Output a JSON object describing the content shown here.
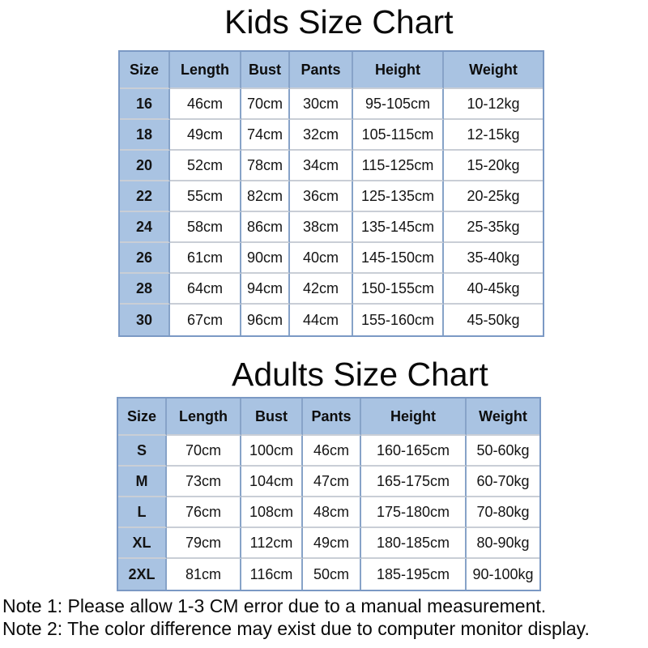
{
  "colors": {
    "table_header_fill": "#a9c3e2",
    "table_border_blue": "#7b99c4",
    "cell_divider_blue": "#87a3c8",
    "row_divider_gray": "#c9ced6",
    "text": "#000000",
    "background": "#ffffff"
  },
  "kids_chart": {
    "title": "Kids Size Chart",
    "columns": [
      "Size",
      "Length",
      "Bust",
      "Pants",
      "Height",
      "Weight"
    ],
    "rows": [
      [
        "16",
        "46cm",
        "70cm",
        "30cm",
        "95-105cm",
        "10-12kg"
      ],
      [
        "18",
        "49cm",
        "74cm",
        "32cm",
        "105-115cm",
        "12-15kg"
      ],
      [
        "20",
        "52cm",
        "78cm",
        "34cm",
        "115-125cm",
        "15-20kg"
      ],
      [
        "22",
        "55cm",
        "82cm",
        "36cm",
        "125-135cm",
        "20-25kg"
      ],
      [
        "24",
        "58cm",
        "86cm",
        "38cm",
        "135-145cm",
        "25-35kg"
      ],
      [
        "26",
        "61cm",
        "90cm",
        "40cm",
        "145-150cm",
        "35-40kg"
      ],
      [
        "28",
        "64cm",
        "94cm",
        "42cm",
        "150-155cm",
        "40-45kg"
      ],
      [
        "30",
        "67cm",
        "96cm",
        "44cm",
        "155-160cm",
        "45-50kg"
      ]
    ]
  },
  "adults_chart": {
    "title": "Adults Size Chart",
    "columns": [
      "Size",
      "Length",
      "Bust",
      "Pants",
      "Height",
      "Weight"
    ],
    "rows": [
      [
        "S",
        "70cm",
        "100cm",
        "46cm",
        "160-165cm",
        "50-60kg"
      ],
      [
        "M",
        "73cm",
        "104cm",
        "47cm",
        "165-175cm",
        "60-70kg"
      ],
      [
        "L",
        "76cm",
        "108cm",
        "48cm",
        "175-180cm",
        "70-80kg"
      ],
      [
        "XL",
        "79cm",
        "112cm",
        "49cm",
        "180-185cm",
        "80-90kg"
      ],
      [
        "2XL",
        "81cm",
        "116cm",
        "50cm",
        "185-195cm",
        "90-100kg"
      ]
    ]
  },
  "notes": [
    "Note 1: Please allow 1-3 CM error due to a manual measurement.",
    "Note 2: The color difference may exist due to computer monitor display."
  ]
}
